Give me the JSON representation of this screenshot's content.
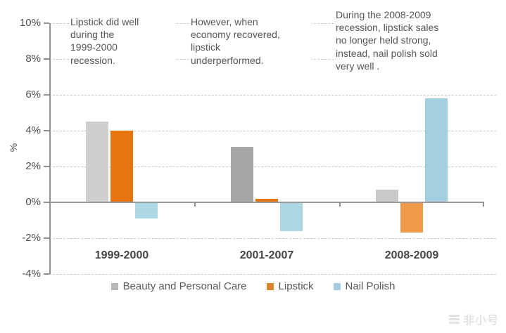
{
  "watermark": "非小号",
  "chart_data": {
    "type": "bar",
    "title": "",
    "xlabel": "",
    "ylabel": "%",
    "categories": [
      "1999-2000",
      "2001-2007",
      "2008-2009"
    ],
    "series": [
      {
        "name": "Beauty and Personal Care",
        "values": [
          4.5,
          3.1,
          0.7
        ],
        "colors": [
          "#cfcfcf",
          "#a6a6a6",
          "#c9c9c9"
        ],
        "legend_color": "#b7b7b7"
      },
      {
        "name": "Lipstick",
        "values": [
          4.0,
          0.2,
          -1.7
        ],
        "colors": [
          "#e6750e",
          "#e6750e",
          "#ee9a49"
        ],
        "legend_color": "#dd8330"
      },
      {
        "name": "Nail Polish",
        "values": [
          -0.9,
          -1.6,
          5.8
        ],
        "colors": [
          "#aed9e4",
          "#abd7e2",
          "#a4cfe0"
        ],
        "legend_color": "#a5cbdc"
      }
    ],
    "ylim": [
      -4,
      10
    ],
    "yticks": [
      {
        "value": 10,
        "label": "10%"
      },
      {
        "value": 8,
        "label": "8%"
      },
      {
        "value": 6,
        "label": "6%"
      },
      {
        "value": 4,
        "label": "4%"
      },
      {
        "value": 2,
        "label": "2%"
      },
      {
        "value": 0,
        "label": "0%"
      },
      {
        "value": -2,
        "label": "-2%"
      },
      {
        "value": -4,
        "label": "-4%"
      }
    ],
    "grid": "horizontal-dashed",
    "legend_position": "bottom",
    "annotations": [
      "Lipstick did well\nduring the\n1999-2000\nrecession.",
      "However, when\neconomy recovered,\nlipstick\nunderperformed.",
      "During the 2008-2009\nrecession, lipstick sales\nno longer held strong,\ninstead,  nail polish sold\nvery well ."
    ]
  }
}
